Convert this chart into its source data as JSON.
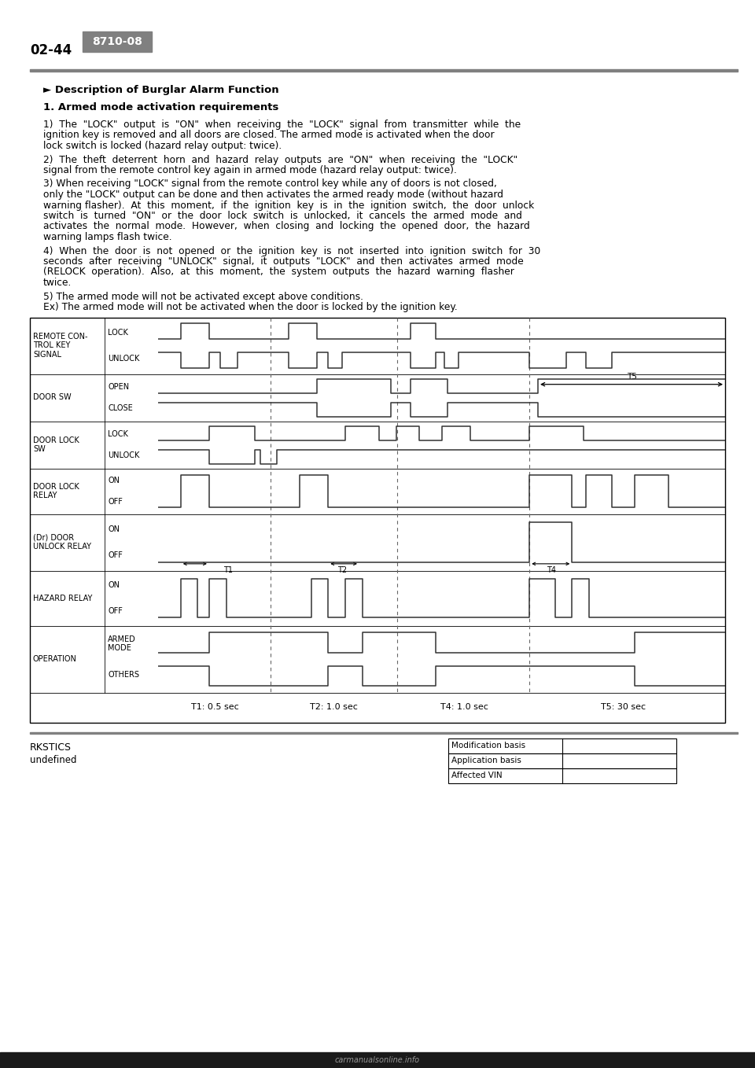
{
  "page_number": "02-44",
  "section_code": "8710-08",
  "section_code_bg": "#808080",
  "section_code_fg": "#ffffff",
  "footer_left_line1": "RKSTICS",
  "footer_left_line2": "undefined",
  "footer_table": [
    "Modification basis",
    "Application basis",
    "Affected VIN"
  ],
  "title": "► Description of Burglar Alarm Function",
  "section1_header": "1. Armed mode activation requirements",
  "para1": "1)  The  \"LOCK\"  output  is  \"ON\"  when  receiving  the  \"LOCK\"  signal  from  transmitter  while  the",
  "para1b": "ignition key is removed and all doors are closed. The armed mode is activated when the door",
  "para1c": "lock switch is locked (hazard relay output: twice).",
  "para2": "2)  The  theft  deterrent  horn  and  hazard  relay  outputs  are  \"ON\"  when  receiving  the  \"LOCK\"",
  "para2b": "signal from the remote control key again in armed mode (hazard relay output: twice).",
  "para3": "3) When receiving \"LOCK\" signal from the remote control key while any of doors is not closed,",
  "para3b": "only the \"LOCK\" output can be done and then activates the armed ready mode (without hazard",
  "para3c": "warning flasher).  At  this  moment,  if  the  ignition  key  is  in  the  ignition  switch,  the  door  unlock",
  "para3d": "switch  is  turned  \"ON\"  or  the  door  lock  switch  is  unlocked,  it  cancels  the  armed  mode  and",
  "para3e": "activates  the  normal  mode.  However,  when  closing  and  locking  the  opened  door,  the  hazard",
  "para3f": "warning lamps flash twice.",
  "para4": "4)  When  the  door  is  not  opened  or  the  ignition  key  is  not  inserted  into  ignition  switch  for  30",
  "para4b": "seconds  after  receiving  \"UNLOCK\"  signal,  it  outputs  \"LOCK\"  and  then  activates  armed  mode",
  "para4c": "(RELOCK  operation).  Also,  at  this  moment,  the  system  outputs  the  hazard  warning  flasher",
  "para4d": "twice.",
  "para5": "5) The armed mode will not be activated except above conditions.",
  "paraex": "Ex) The armed mode will not be activated when the door is locked by the ignition key.",
  "diagram_timing_labels": [
    "T1: 0.5 sec",
    "T2: 1.0 sec",
    "T4: 1.0 sec",
    "T5: 30 sec"
  ],
  "background_color": "#ffffff"
}
